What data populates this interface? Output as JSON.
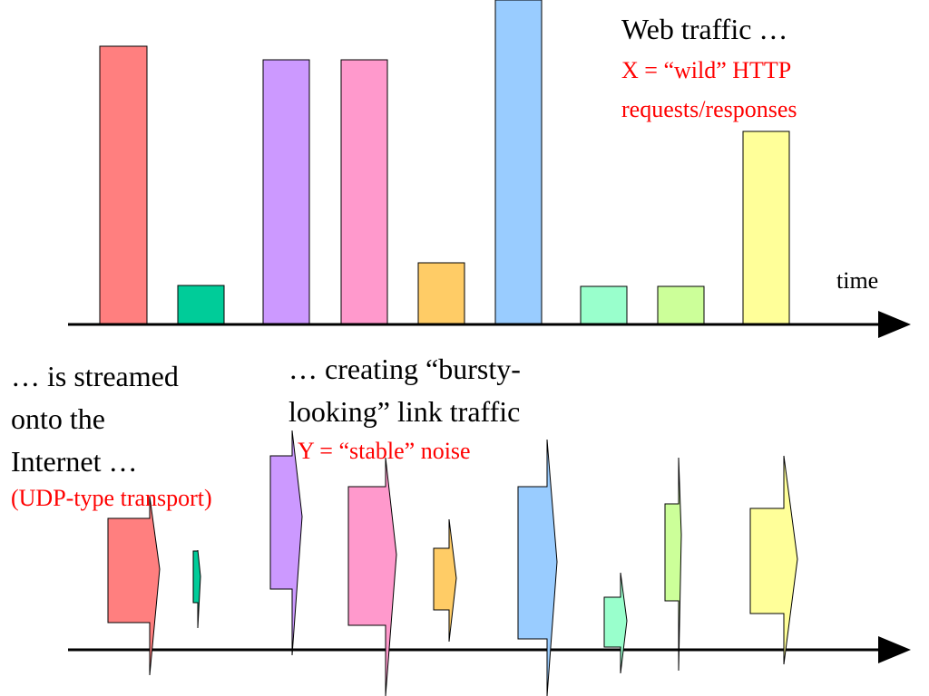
{
  "top_caption": {
    "title": "Web traffic …",
    "note_lines": [
      "X = “wild” HTTP",
      "requests/responses"
    ]
  },
  "axis_label": "time",
  "left_caption": {
    "lines": [
      "… is streamed",
      "onto the",
      "Internet …"
    ],
    "note": "(UDP-type transport)"
  },
  "middle_caption": {
    "lines": [
      "… creating “bursty-",
      "looking” link traffic"
    ],
    "note": "Y = “stable” noise"
  }
}
